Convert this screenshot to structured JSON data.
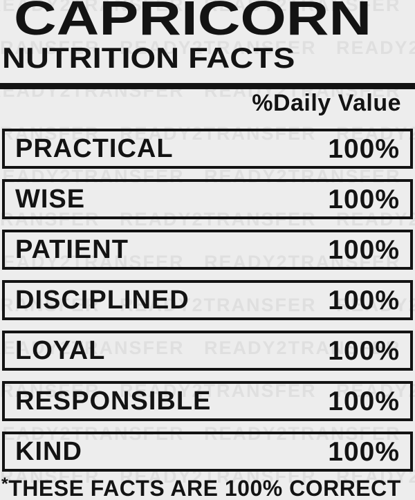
{
  "header": {
    "title": "CAPRICORN",
    "subtitle": "NUTRITION FACTS",
    "daily_value_label": "%Daily Value"
  },
  "table": {
    "rows": [
      {
        "label": "PRACTICAL",
        "value": "100%"
      },
      {
        "label": "WISE",
        "value": "100%"
      },
      {
        "label": "PATIENT",
        "value": "100%"
      },
      {
        "label": "DISCIPLINED",
        "value": "100%"
      },
      {
        "label": "LOYAL",
        "value": "100%"
      },
      {
        "label": "RESPONSIBLE",
        "value": "100%"
      },
      {
        "label": "KIND",
        "value": "100%"
      }
    ]
  },
  "footer": {
    "asterisk": "*",
    "text": "THESE FACTS ARE 100% CORRECT"
  },
  "watermark": {
    "text": "READY2TRANSFER"
  },
  "colors": {
    "background": "#ededed",
    "ink": "#131313",
    "watermark": "#dfdfdf"
  }
}
